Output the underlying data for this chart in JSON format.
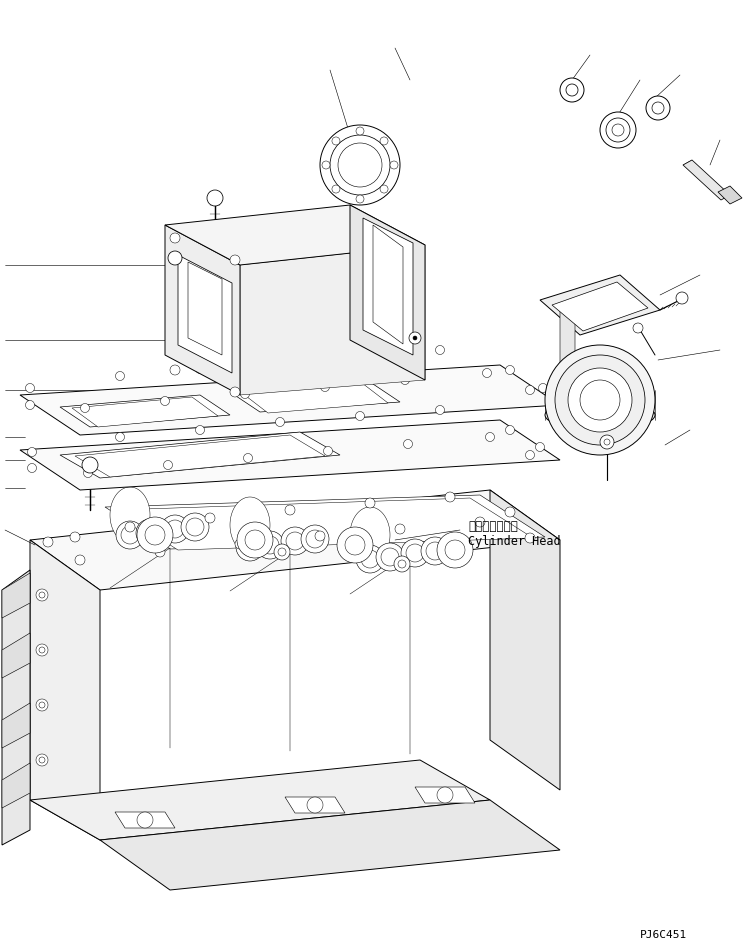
{
  "background_color": "#ffffff",
  "line_color": "#000000",
  "lw": 0.7,
  "label_jp": "シリンダヘッド",
  "label_en": "Cylinder Head",
  "part_code": "PJ6C451",
  "figsize": [
    7.46,
    9.47
  ],
  "dpi": 100
}
